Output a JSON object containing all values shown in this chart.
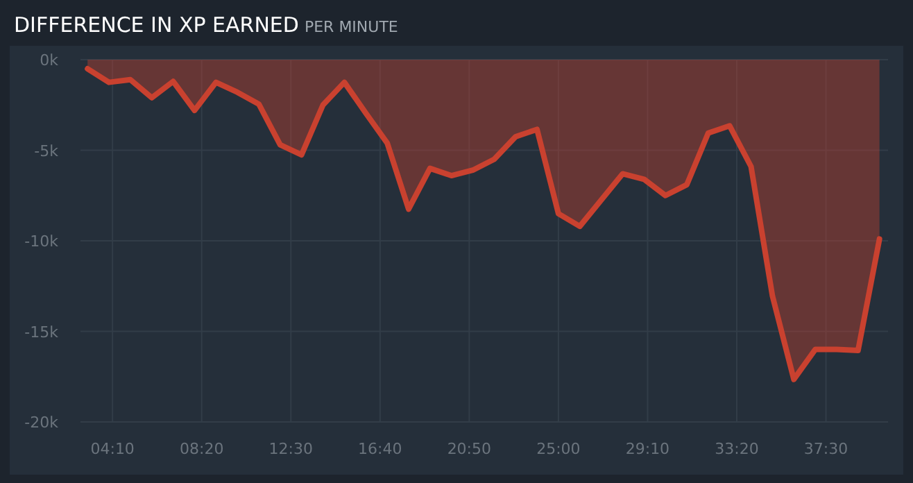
{
  "chart_data": {
    "type": "area",
    "title": "DIFFERENCE IN XP EARNED",
    "subtitle": "PER MINUTE",
    "x": [
      3,
      4,
      5,
      6,
      7,
      8,
      9,
      10,
      11,
      12,
      13,
      14,
      15,
      16,
      17,
      18,
      19,
      20,
      21,
      22,
      23,
      24,
      25,
      26,
      27,
      28,
      29,
      30,
      31,
      32,
      33,
      34,
      35,
      36,
      37,
      38,
      39,
      40
    ],
    "series": [
      {
        "color": "#c9412f",
        "values": [
          -500,
          -1250,
          -1100,
          -2100,
          -1200,
          -2800,
          -1250,
          -1800,
          -2450,
          -4700,
          -5250,
          -2500,
          -1250,
          -2950,
          -4600,
          -8250,
          -6000,
          -6400,
          -6100,
          -5500,
          -4250,
          -3850,
          -8500,
          -9200,
          -7750,
          -6300,
          -6600,
          -7500,
          -6900,
          -4050,
          -3650,
          -5900,
          -13050,
          -17650,
          -16000,
          -16000,
          -16050,
          -9900
        ]
      }
    ],
    "xlim": [
      2.67,
      40.4
    ],
    "xticks": [
      {
        "value": 4.1667,
        "label": "04:10"
      },
      {
        "value": 8.3333,
        "label": "08:20"
      },
      {
        "value": 12.5,
        "label": "12:30"
      },
      {
        "value": 16.6667,
        "label": "16:40"
      },
      {
        "value": 20.8333,
        "label": "20:50"
      },
      {
        "value": 25,
        "label": "25:00"
      },
      {
        "value": 29.1667,
        "label": "29:10"
      },
      {
        "value": 33.3333,
        "label": "33:20"
      },
      {
        "value": 37.5,
        "label": "37:30"
      }
    ],
    "ylim": [
      -20000,
      0
    ],
    "yticks": [
      {
        "value": 0,
        "label": "0k"
      },
      {
        "value": -5000,
        "label": "-5k"
      },
      {
        "value": -10000,
        "label": "-10k"
      },
      {
        "value": -15000,
        "label": "-15k"
      },
      {
        "value": -20000,
        "label": "-20k"
      }
    ],
    "grid": true
  }
}
